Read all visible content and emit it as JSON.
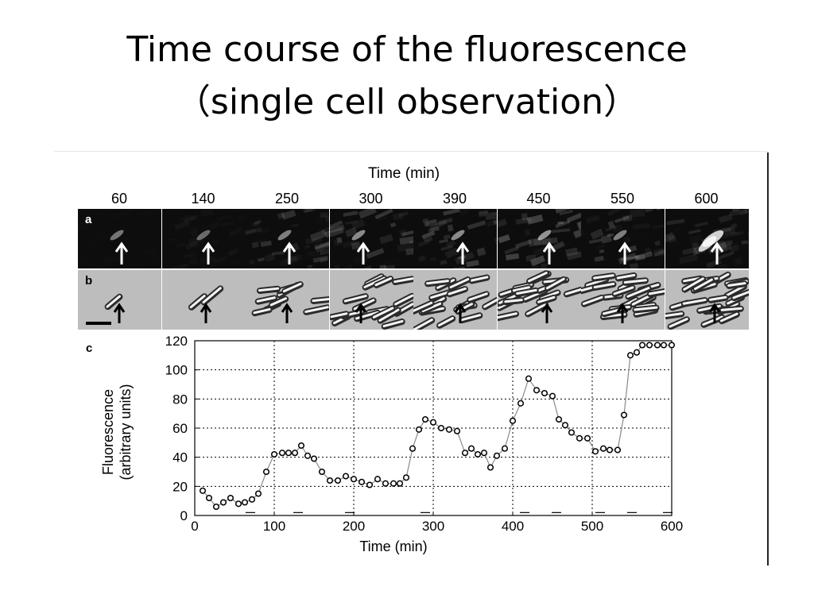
{
  "slide": {
    "title_line1": "Time course of the fluorescence",
    "title_line2": "（single cell observation）"
  },
  "figure": {
    "time_header": "Time (min)",
    "time_points": [
      "60",
      "140",
      "250",
      "300",
      "390",
      "450",
      "550",
      "600"
    ],
    "row_a_label": "a",
    "row_b_label": "b",
    "panel_c_label": "c",
    "row_a_arrow_color": "#ffffff",
    "row_b_arrow_color": "#000000"
  },
  "chart_data": {
    "type": "line",
    "title": "",
    "xlabel": "Time (min)",
    "ylabel": "Fluorescence\n(arbitrary units)",
    "ylabel_line1": "Fluorescence",
    "ylabel_line2": "(arbitrary units)",
    "xlim": [
      0,
      600
    ],
    "ylim": [
      0,
      120
    ],
    "xticks": [
      0,
      100,
      200,
      300,
      400,
      500,
      600
    ],
    "yticks": [
      0,
      20,
      40,
      60,
      80,
      100,
      120
    ],
    "grid": true,
    "grid_style": "dotted",
    "marker": "circle",
    "series": [
      {
        "x": [
          10,
          18,
          27,
          36,
          45,
          55,
          63,
          72,
          80,
          90,
          100,
          110,
          118,
          126,
          134,
          142,
          150,
          160,
          170,
          180,
          190,
          200,
          210,
          220,
          230,
          240,
          250,
          258,
          266,
          274,
          282,
          290,
          300,
          310,
          320,
          330,
          340,
          348,
          356,
          364,
          372,
          380,
          390,
          400,
          410,
          420,
          430,
          440,
          450,
          458,
          466,
          474,
          484,
          494,
          504,
          514,
          522,
          532,
          540,
          548,
          556,
          563,
          572,
          582,
          590,
          600
        ],
        "values": [
          17,
          12,
          6,
          9,
          12,
          8,
          9,
          11,
          15,
          30,
          42,
          43,
          43,
          43,
          48,
          41,
          39,
          30,
          24,
          24,
          27,
          25,
          23,
          21,
          25,
          22,
          22,
          22,
          26,
          46,
          59,
          66,
          64,
          60,
          59,
          58,
          43,
          46,
          42,
          43,
          33,
          41,
          46,
          65,
          77,
          94,
          86,
          84,
          82,
          66,
          62,
          57,
          53,
          53,
          44,
          46,
          45,
          45,
          69,
          110,
          112,
          117,
          117,
          117,
          117,
          117
        ]
      }
    ],
    "baseline_marks_x": [
      70,
      130,
      195,
      290,
      415,
      455,
      510,
      550,
      595
    ],
    "line_color": "#8a8a8a",
    "marker_color": "#000000"
  }
}
